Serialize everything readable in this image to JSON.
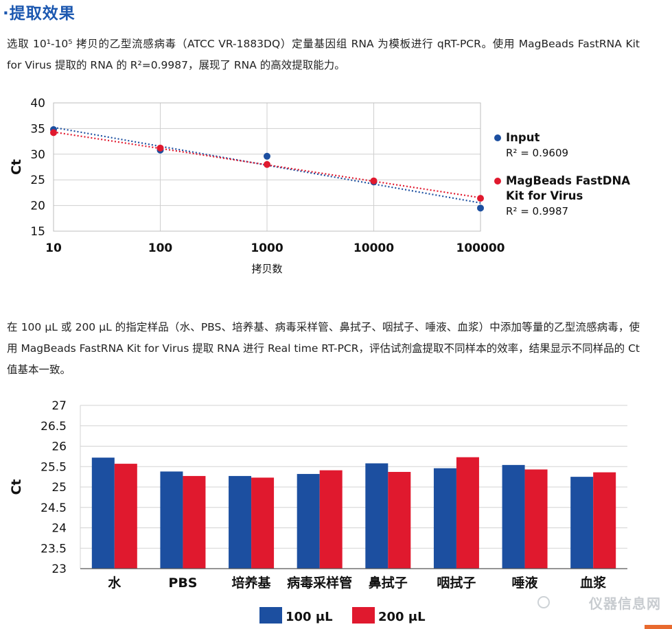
{
  "section": {
    "title": "·提取效果"
  },
  "text": {
    "para1": "选取 10¹-10⁵ 拷贝的乙型流感病毒（ATCC VR-1883DQ）定量基因组 RNA 为模板进行 qRT-PCR。使用 MagBeads FastRNA Kit for Virus 提取的 RNA 的 R²=0.9987，展现了 RNA 的高效提取能力。",
    "para2": "在 100 μL 或 200 μL 的指定样品（水、PBS、培养基、病毒采样管、鼻拭子、咽拭子、唾液、血浆）中添加等量的乙型流感病毒，使用 MagBeads FastRNA Kit for Virus 提取 RNA 进行 Real time RT-PCR，评估试剂盒提取不同样本的效率，结果显示不同样品的 Ct 值基本一致。"
  },
  "chart_data": [
    {
      "type": "scatter",
      "xscale": "log",
      "xlim": [
        10,
        100000
      ],
      "ylim": [
        15,
        40
      ],
      "xlabel": "拷贝数",
      "ylabel": "Ct",
      "x_tick_labels": [
        "10",
        "100",
        "1000",
        "10000",
        "100000"
      ],
      "y_tick_labels": [
        "15",
        "20",
        "25",
        "30",
        "35",
        "40"
      ],
      "grid": true,
      "legend_position": "right",
      "trendline": "dotted log-linear fit",
      "series": [
        {
          "name": "Input",
          "color": "#1c4fa0",
          "x": [
            10,
            100,
            1000,
            10000,
            100000
          ],
          "y": [
            34.8,
            30.8,
            29.6,
            24.6,
            19.5
          ],
          "r2_label": "R² = 0.9609"
        },
        {
          "name": "MagBeads FastDNA Kit for Virus",
          "color": "#e0192e",
          "x": [
            10,
            100,
            1000,
            10000,
            100000
          ],
          "y": [
            34.2,
            31.2,
            28.0,
            24.8,
            21.4
          ],
          "r2_label": "R² = 0.9987"
        }
      ]
    },
    {
      "type": "bar",
      "ylim": [
        23,
        27
      ],
      "ylabel": "Ct",
      "y_tick_labels": [
        "23",
        "23.5",
        "24",
        "24.5",
        "25",
        "25.5",
        "26",
        "26.5",
        "27"
      ],
      "grid": true,
      "legend_position": "bottom",
      "categories": [
        "水",
        "PBS",
        "培养基",
        "病毒采样管",
        "鼻拭子",
        "咽拭子",
        "唾液",
        "血浆"
      ],
      "series": [
        {
          "name": "100 μL",
          "color": "#1c4fa0",
          "values": [
            25.72,
            25.38,
            25.27,
            25.32,
            25.58,
            25.46,
            25.54,
            25.25
          ]
        },
        {
          "name": "200 μL",
          "color": "#e0192e",
          "values": [
            25.57,
            25.27,
            25.23,
            25.41,
            25.37,
            25.73,
            25.43,
            25.36
          ]
        }
      ]
    }
  ],
  "watermark": {
    "text": "仪器信息网"
  }
}
